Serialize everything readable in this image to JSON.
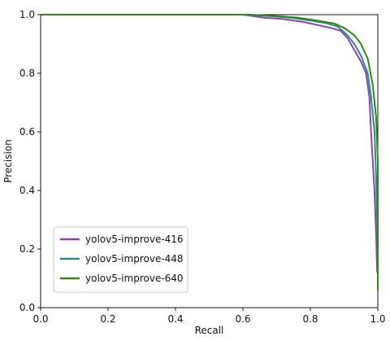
{
  "chart_data": {
    "type": "line",
    "xlabel": "Recall",
    "ylabel": "Precision",
    "xlim": [
      0.0,
      1.0
    ],
    "ylim": [
      0.0,
      1.0
    ],
    "xticks": [
      "0.0",
      "0.2",
      "0.4",
      "0.6",
      "0.8",
      "1.0"
    ],
    "yticks": [
      "0.0",
      "0.2",
      "0.4",
      "0.6",
      "0.8",
      "1.0"
    ],
    "grid": false,
    "legend_position": "lower-left",
    "series": [
      {
        "name": "yolov5-improve-416",
        "color": "#8e44ad",
        "points": [
          [
            0.0,
            1.0
          ],
          [
            0.6,
            1.0
          ],
          [
            0.66,
            0.99
          ],
          [
            0.72,
            0.985
          ],
          [
            0.78,
            0.975
          ],
          [
            0.82,
            0.965
          ],
          [
            0.86,
            0.955
          ],
          [
            0.89,
            0.945
          ],
          [
            0.91,
            0.92
          ],
          [
            0.93,
            0.88
          ],
          [
            0.95,
            0.84
          ],
          [
            0.965,
            0.8
          ],
          [
            0.975,
            0.72
          ],
          [
            0.98,
            0.6
          ],
          [
            0.985,
            0.5
          ],
          [
            0.99,
            0.4
          ],
          [
            0.995,
            0.25
          ],
          [
            0.998,
            0.12
          ]
        ]
      },
      {
        "name": "yolov5-improve-448",
        "color": "#2a8a93",
        "points": [
          [
            0.0,
            1.0
          ],
          [
            0.6,
            1.0
          ],
          [
            0.68,
            0.995
          ],
          [
            0.74,
            0.99
          ],
          [
            0.8,
            0.98
          ],
          [
            0.85,
            0.97
          ],
          [
            0.88,
            0.96
          ],
          [
            0.91,
            0.93
          ],
          [
            0.93,
            0.9
          ],
          [
            0.95,
            0.86
          ],
          [
            0.97,
            0.8
          ],
          [
            0.98,
            0.72
          ],
          [
            0.99,
            0.6
          ],
          [
            0.995,
            0.45
          ],
          [
            0.998,
            0.3
          ],
          [
            1.0,
            0.1
          ]
        ]
      },
      {
        "name": "yolov5-improve-640",
        "color": "#2e8b12",
        "points": [
          [
            0.0,
            1.0
          ],
          [
            0.62,
            1.0
          ],
          [
            0.7,
            0.995
          ],
          [
            0.76,
            0.99
          ],
          [
            0.82,
            0.98
          ],
          [
            0.87,
            0.97
          ],
          [
            0.9,
            0.955
          ],
          [
            0.93,
            0.93
          ],
          [
            0.95,
            0.9
          ],
          [
            0.97,
            0.85
          ],
          [
            0.985,
            0.76
          ],
          [
            0.995,
            0.65
          ],
          [
            1.0,
            0.5
          ],
          [
            1.0,
            0.3
          ],
          [
            1.0,
            0.06
          ]
        ]
      }
    ]
  }
}
